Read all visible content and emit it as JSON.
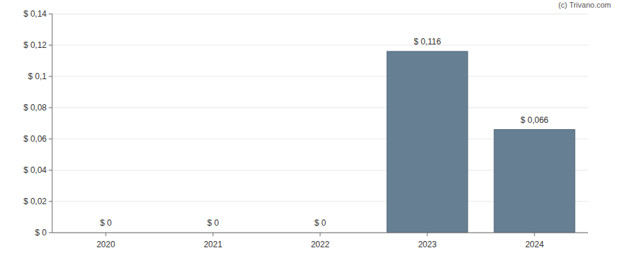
{
  "chart_data": {
    "type": "bar",
    "annotations": [
      "(c) Trivano.com"
    ],
    "categories": [
      "2020",
      "2021",
      "2022",
      "2023",
      "2024"
    ],
    "values": [
      0,
      0,
      0,
      0.116,
      0.066
    ],
    "value_labels": [
      "$ 0",
      "$ 0",
      "$ 0",
      "$ 0,116",
      "$ 0,066"
    ],
    "data_labels": true,
    "color": "#667f93",
    "ylim": [
      0,
      0.14
    ],
    "yticks": [
      {
        "value": 0,
        "label": "$ 0"
      },
      {
        "value": 0.02,
        "label": "$ 0,02"
      },
      {
        "value": 0.04,
        "label": "$ 0,04"
      },
      {
        "value": 0.06,
        "label": "$ 0,06"
      },
      {
        "value": 0.08,
        "label": "$ 0,08"
      },
      {
        "value": 0.1,
        "label": "$ 0,1"
      },
      {
        "value": 0.12,
        "label": "$ 0,12"
      },
      {
        "value": 0.14,
        "label": "$ 0,14"
      }
    ],
    "grid": true
  }
}
